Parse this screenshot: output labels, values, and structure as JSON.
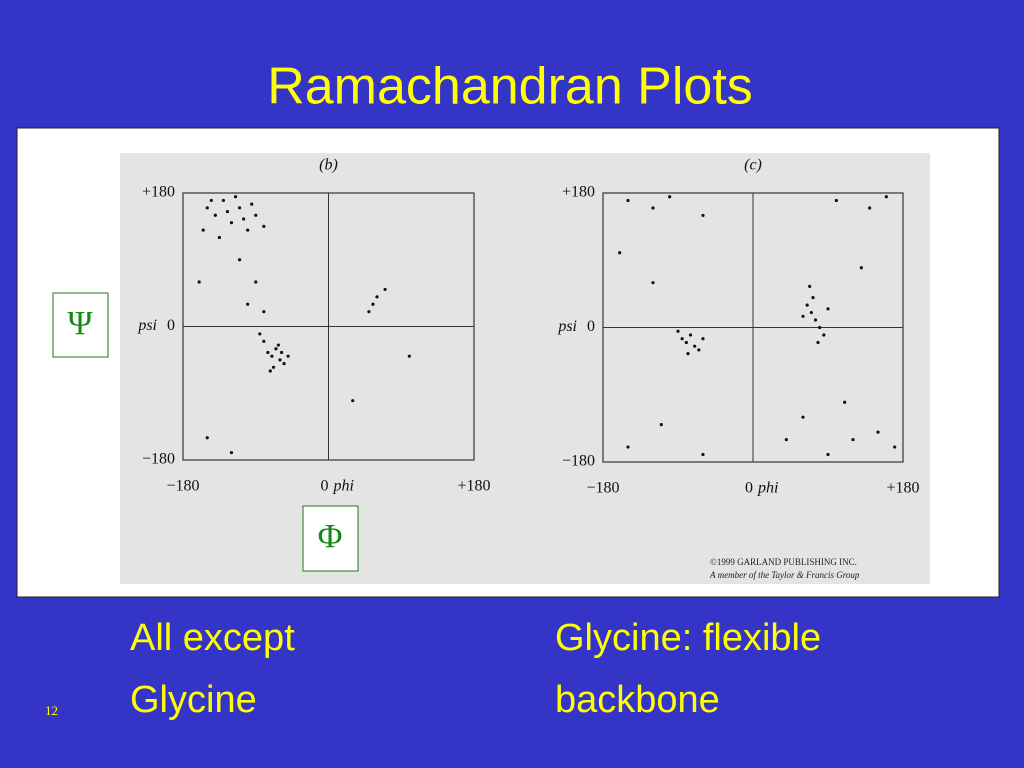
{
  "title": "Ramachandran Plots",
  "psi_symbol": "Ψ",
  "phi_symbol": "Φ",
  "copyright": [
    "©1999 GARLAND PUBLISHING INC.",
    "A member of the Taylor & Francis Group"
  ],
  "captions": [
    [
      "All except",
      "Glycine"
    ],
    [
      "Glycine: flexible",
      "backbone"
    ]
  ],
  "page_number": "12",
  "chart_data": [
    {
      "type": "scatter",
      "title": "(b)",
      "xlabel": "phi",
      "ylabel": "psi",
      "color": "#111111",
      "xlim": [
        -180,
        180
      ],
      "ylim": [
        -180,
        180
      ],
      "xticks": [
        {
          "value": -180,
          "label": "−180"
        },
        0,
        {
          "value": 180,
          "label": "+180"
        }
      ],
      "yticks": [
        {
          "value": -180,
          "label": "−180"
        },
        0,
        {
          "value": 180,
          "label": "+180"
        }
      ],
      "x": [
        -150,
        -140,
        -130,
        -120,
        -110,
        -100,
        -90,
        -155,
        -135,
        -125,
        -115,
        -95,
        -145,
        -105,
        -80,
        -70,
        -65,
        -60,
        -75,
        -55,
        -80,
        -68,
        -62,
        -50,
        -85,
        -72,
        -58,
        -90,
        -100,
        -80,
        -110,
        60,
        55,
        70,
        50,
        -150,
        -120,
        30,
        100,
        -160
      ],
      "values": [
        160,
        150,
        170,
        140,
        160,
        130,
        150,
        130,
        120,
        155,
        175,
        165,
        170,
        145,
        135,
        -40,
        -30,
        -45,
        -35,
        -50,
        -20,
        -55,
        -25,
        -40,
        -10,
        -60,
        -35,
        60,
        30,
        20,
        90,
        40,
        30,
        50,
        20,
        -150,
        -170,
        -100,
        -40,
        60
      ]
    },
    {
      "type": "scatter",
      "title": "(c)",
      "xlabel": "phi",
      "ylabel": "psi",
      "color": "#111111",
      "xlim": [
        -180,
        180
      ],
      "ylim": [
        -180,
        180
      ],
      "xticks": [
        {
          "value": -180,
          "label": "−180"
        },
        0,
        {
          "value": 180,
          "label": "+180"
        }
      ],
      "yticks": [
        {
          "value": -180,
          "label": "−180"
        },
        0,
        {
          "value": 180,
          "label": "+180"
        }
      ],
      "x": [
        -80,
        -75,
        -70,
        -85,
        -65,
        -90,
        -78,
        -60,
        75,
        70,
        80,
        65,
        85,
        72,
        78,
        60,
        90,
        68,
        -150,
        -120,
        -100,
        -60,
        100,
        140,
        160,
        120,
        90,
        150,
        60,
        110,
        -150,
        -110,
        -60,
        -160,
        -120,
        170,
        40,
        130
      ],
      "values": [
        -20,
        -10,
        -25,
        -15,
        -30,
        -5,
        -35,
        -15,
        10,
        20,
        0,
        30,
        -10,
        40,
        -20,
        15,
        25,
        55,
        170,
        160,
        175,
        150,
        170,
        160,
        175,
        -150,
        -170,
        -140,
        -120,
        -100,
        -160,
        -130,
        -170,
        100,
        60,
        -160,
        -150,
        80
      ]
    }
  ]
}
